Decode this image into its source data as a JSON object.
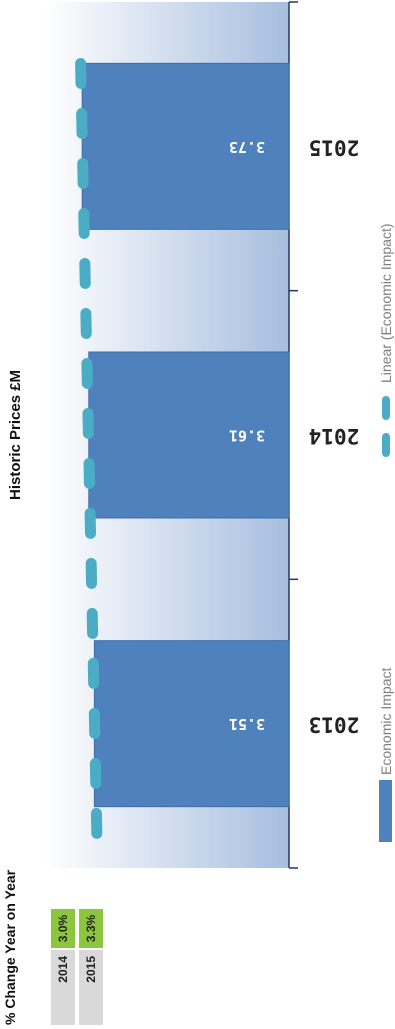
{
  "chart_data": {
    "type": "bar",
    "title": "Historic Prices £M",
    "categories": [
      "2013",
      "2014",
      "2015"
    ],
    "series": [
      {
        "name": "Economic Impact",
        "values": [
          3.51,
          3.61,
          3.73
        ],
        "color": "#4f81bd"
      }
    ],
    "trendline": {
      "name": "Linear (Economic Impact)",
      "type": "linear",
      "color": "#4bacc6"
    },
    "data_labels": [
      "3.51",
      "3.61",
      "3.73"
    ],
    "legend": [
      "Economic Impact",
      "Linear (Economic Impact)"
    ],
    "ylim": [
      0,
      4.4
    ],
    "grid": false,
    "legend_position": "bottom"
  },
  "change_table": {
    "header": "% Change Year on Year",
    "rows": [
      {
        "year": "2014",
        "pct": "3.0%"
      },
      {
        "year": "2015",
        "pct": "3.3%"
      }
    ]
  }
}
